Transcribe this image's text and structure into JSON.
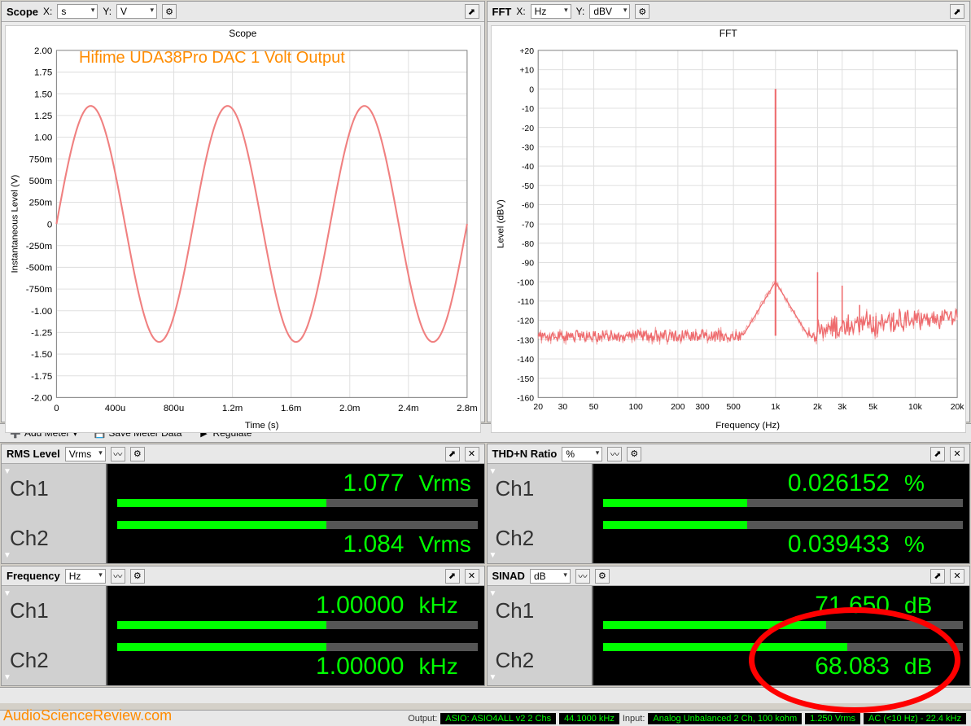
{
  "scope": {
    "title": "Scope",
    "x_label": "X:",
    "x_unit": "s",
    "y_label": "Y:",
    "y_unit": "V",
    "chart_title": "Scope",
    "annotation": "Hifime UDA38Pro DAC 1 Volt Output",
    "x_axis_label": "Time (s)",
    "y_axis_label": "Instantaneous Level (V)",
    "xlim": [
      0,
      0.003
    ],
    "ylim": [
      -2.25,
      2.25
    ],
    "x_ticks": [
      "0",
      "400u",
      "800u",
      "1.2m",
      "1.6m",
      "2.0m",
      "2.4m",
      "2.8m"
    ],
    "y_ticks": [
      "-2.00",
      "-1.75",
      "-1.50",
      "-1.25",
      "-1.00",
      "-750m",
      "-500m",
      "-250m",
      "0",
      "250m",
      "500m",
      "750m",
      "1.00",
      "1.25",
      "1.50",
      "1.75",
      "2.00"
    ],
    "line_color": "#f08080",
    "line_width": 2,
    "background": "#ffffff",
    "grid_color": "#e0e0e0",
    "sine_amplitude": 1.53,
    "sine_freq_hz": 1000
  },
  "fft": {
    "title": "FFT",
    "x_label": "X:",
    "x_unit": "Hz",
    "y_label": "Y:",
    "y_unit": "dBV",
    "chart_title": "FFT",
    "x_axis_label": "Frequency (Hz)",
    "y_axis_label": "Level (dBV)",
    "xlim": [
      20,
      20000
    ],
    "ylim": [
      -160,
      20
    ],
    "x_ticks": [
      "20",
      "30",
      "50",
      "100",
      "200",
      "300",
      "500",
      "1k",
      "2k",
      "3k",
      "5k",
      "10k",
      "20k"
    ],
    "y_ticks": [
      "-160",
      "-150",
      "-140",
      "-130",
      "-120",
      "-110",
      "-100",
      "-90",
      "-80",
      "-70",
      "-60",
      "-50",
      "-40",
      "-30",
      "-20",
      "-10",
      "0",
      "+10",
      "+20"
    ],
    "line_color": "#ee6b6e",
    "line_color2": "#f4a6a6",
    "background": "#ffffff",
    "grid_color": "#e0e0e0",
    "noise_floor_db": -128,
    "fundamental_hz": 1000,
    "fundamental_db": 0,
    "harmonics": [
      {
        "hz": 2000,
        "db": -95
      },
      {
        "hz": 3000,
        "db": -102
      },
      {
        "hz": 4000,
        "db": -112
      },
      {
        "hz": 5000,
        "db": -118
      },
      {
        "hz": 7000,
        "db": -116
      }
    ]
  },
  "toolbar": {
    "add_meter": "Add Meter",
    "save_meter": "Save Meter Data",
    "regulate": "Regulate"
  },
  "meters": {
    "rms": {
      "title": "RMS Level",
      "unit_sel": "Vrms",
      "ch1": {
        "label": "Ch1",
        "value": "1.077",
        "unit": "Vrms",
        "fill_pct": 58
      },
      "ch2": {
        "label": "Ch2",
        "value": "1.084",
        "unit": "Vrms",
        "fill_pct": 58
      }
    },
    "thdn": {
      "title": "THD+N Ratio",
      "unit_sel": "%",
      "ch1": {
        "label": "Ch1",
        "value": "0.026152",
        "unit": "%",
        "fill_pct": 40
      },
      "ch2": {
        "label": "Ch2",
        "value": "0.039433",
        "unit": "%",
        "fill_pct": 40
      }
    },
    "freq": {
      "title": "Frequency",
      "unit_sel": "Hz",
      "ch1": {
        "label": "Ch1",
        "value": "1.00000",
        "unit": "kHz",
        "fill_pct": 58
      },
      "ch2": {
        "label": "Ch2",
        "value": "1.00000",
        "unit": "kHz",
        "fill_pct": 58
      }
    },
    "sinad": {
      "title": "SINAD",
      "unit_sel": "dB",
      "ch1": {
        "label": "Ch1",
        "value": "71.650",
        "unit": "dB",
        "fill_pct": 62
      },
      "ch2": {
        "label": "Ch2",
        "value": "68.083",
        "unit": "dB",
        "fill_pct": 68
      }
    }
  },
  "status": {
    "output_label": "Output:",
    "output_1": "ASIO: ASIO4ALL v2 2 Chs",
    "output_2": "44.1000 kHz",
    "input_label": "Input:",
    "input_1": "Analog Unbalanced 2 Ch, 100 kohm",
    "input_2": "1.250 Vrms",
    "input_3": "AC (<10 Hz) - 22.4 kHz"
  },
  "watermark": "AudioScienceReview.com",
  "colors": {
    "bar_fill": "#00ff00",
    "bar_track": "#555555",
    "value_text": "#00ff00",
    "annotation": "#ff8c00",
    "circle": "#ff0000"
  }
}
